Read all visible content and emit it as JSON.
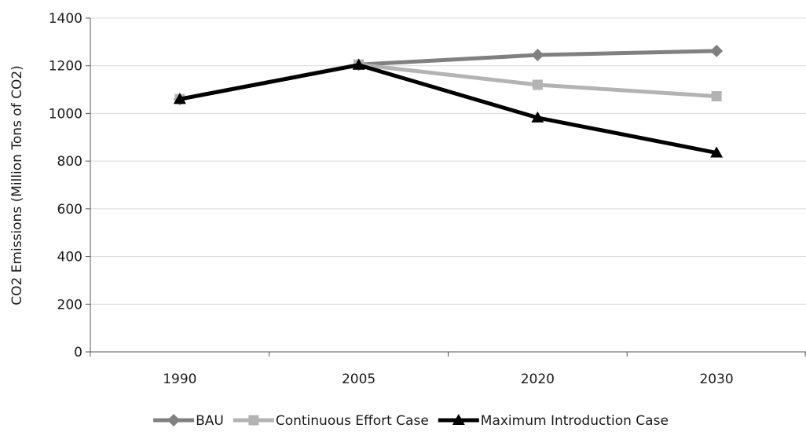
{
  "chart_data": {
    "type": "line",
    "title": "",
    "xlabel": "",
    "ylabel": "CO2 Emissions (Million Tons of CO2)",
    "categories": [
      "1990",
      "2005",
      "2020",
      "2030"
    ],
    "ylim": [
      0,
      1400
    ],
    "yticks": [
      "0",
      "200",
      "400",
      "600",
      "800",
      "1000",
      "1200",
      "1400"
    ],
    "grid": "horizontal",
    "legend_position": "bottom",
    "series": [
      {
        "name": "BAU",
        "values": [
          1060,
          1205,
          1245,
          1262
        ],
        "color": "#808080",
        "marker": "diamond"
      },
      {
        "name": "Continuous Effort Case",
        "values": [
          1060,
          1205,
          1120,
          1072
        ],
        "color": "#b3b3b3",
        "marker": "square"
      },
      {
        "name": "Maximum Introduction Case",
        "values": [
          1060,
          1203,
          982,
          835
        ],
        "color": "#000000",
        "marker": "triangle"
      }
    ]
  }
}
